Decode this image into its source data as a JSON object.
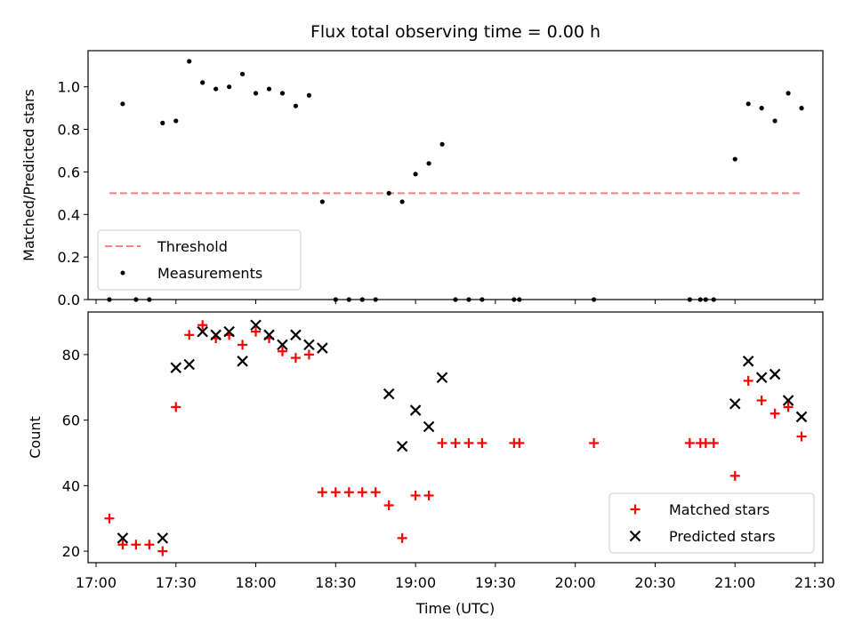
{
  "chart_data": [
    {
      "type": "scatter",
      "title": "Flux total observing time = 0.00 h",
      "ylabel": "Matched/Predicted stars",
      "xlabel": "",
      "ylim": [
        0,
        1.17
      ],
      "xlim": [
        "16:57",
        "21:33"
      ],
      "yticks": [
        "0.0",
        "0.2",
        "0.4",
        "0.6",
        "0.8",
        "1.0"
      ],
      "legend": {
        "placement": "lower-left",
        "entries": [
          "Threshold",
          "Measurements"
        ]
      },
      "threshold": {
        "value": 0.5,
        "x_start": "17:05",
        "x_end": "21:25",
        "color": "#ff7f7f"
      },
      "series": [
        {
          "name": "Measurements",
          "color": "#000000",
          "marker": "dot",
          "points": [
            [
              "17:05",
              0.0
            ],
            [
              "17:10",
              0.92
            ],
            [
              "17:15",
              0.0
            ],
            [
              "17:20",
              0.0
            ],
            [
              "17:25",
              0.83
            ],
            [
              "17:30",
              0.84
            ],
            [
              "17:35",
              1.12
            ],
            [
              "17:40",
              1.02
            ],
            [
              "17:45",
              0.99
            ],
            [
              "17:50",
              1.0
            ],
            [
              "17:55",
              1.06
            ],
            [
              "18:00",
              0.97
            ],
            [
              "18:05",
              0.99
            ],
            [
              "18:10",
              0.97
            ],
            [
              "18:15",
              0.91
            ],
            [
              "18:20",
              0.96
            ],
            [
              "18:25",
              0.46
            ],
            [
              "18:30",
              0.0
            ],
            [
              "18:35",
              0.0
            ],
            [
              "18:40",
              0.0
            ],
            [
              "18:45",
              0.0
            ],
            [
              "18:50",
              0.5
            ],
            [
              "18:55",
              0.46
            ],
            [
              "19:00",
              0.59
            ],
            [
              "19:05",
              0.64
            ],
            [
              "19:10",
              0.73
            ],
            [
              "19:15",
              0.0
            ],
            [
              "19:20",
              0.0
            ],
            [
              "19:25",
              0.0
            ],
            [
              "19:37",
              0.0
            ],
            [
              "19:39",
              0.0
            ],
            [
              "20:07",
              0.0
            ],
            [
              "20:43",
              0.0
            ],
            [
              "20:47",
              0.0
            ],
            [
              "20:49",
              0.0
            ],
            [
              "20:52",
              0.0
            ],
            [
              "21:00",
              0.66
            ],
            [
              "21:05",
              0.92
            ],
            [
              "21:10",
              0.9
            ],
            [
              "21:15",
              0.84
            ],
            [
              "21:20",
              0.97
            ],
            [
              "21:25",
              0.9
            ]
          ]
        }
      ]
    },
    {
      "type": "scatter",
      "title": "",
      "ylabel": "Count",
      "xlabel": "Time (UTC)",
      "ylim": [
        16.5,
        93
      ],
      "xlim": [
        "16:57",
        "21:33"
      ],
      "yticks": [
        "20",
        "40",
        "60",
        "80"
      ],
      "xticks": [
        "17:00",
        "17:30",
        "18:00",
        "18:30",
        "19:00",
        "19:30",
        "20:00",
        "20:30",
        "21:00",
        "21:30"
      ],
      "legend": {
        "placement": "lower-right",
        "entries": [
          "Matched stars",
          "Predicted stars"
        ]
      },
      "series": [
        {
          "name": "Matched stars",
          "color": "#ff0000",
          "marker": "plus",
          "points": [
            [
              "17:05",
              30
            ],
            [
              "17:10",
              22
            ],
            [
              "17:15",
              22
            ],
            [
              "17:20",
              22
            ],
            [
              "17:25",
              20
            ],
            [
              "17:30",
              64
            ],
            [
              "17:35",
              86
            ],
            [
              "17:40",
              89
            ],
            [
              "17:45",
              85
            ],
            [
              "17:50",
              86
            ],
            [
              "17:55",
              83
            ],
            [
              "18:00",
              87
            ],
            [
              "18:05",
              85
            ],
            [
              "18:10",
              81
            ],
            [
              "18:15",
              79
            ],
            [
              "18:20",
              80
            ],
            [
              "18:25",
              38
            ],
            [
              "18:30",
              38
            ],
            [
              "18:35",
              38
            ],
            [
              "18:40",
              38
            ],
            [
              "18:45",
              38
            ],
            [
              "18:50",
              34
            ],
            [
              "18:55",
              24
            ],
            [
              "19:00",
              37
            ],
            [
              "19:05",
              37
            ],
            [
              "19:10",
              53
            ],
            [
              "19:15",
              53
            ],
            [
              "19:20",
              53
            ],
            [
              "19:25",
              53
            ],
            [
              "19:37",
              53
            ],
            [
              "19:39",
              53
            ],
            [
              "20:07",
              53
            ],
            [
              "20:43",
              53
            ],
            [
              "20:47",
              53
            ],
            [
              "20:49",
              53
            ],
            [
              "20:52",
              53
            ],
            [
              "21:00",
              43
            ],
            [
              "21:05",
              72
            ],
            [
              "21:10",
              66
            ],
            [
              "21:15",
              62
            ],
            [
              "21:20",
              64
            ],
            [
              "21:25",
              55
            ]
          ]
        },
        {
          "name": "Predicted stars",
          "color": "#000000",
          "marker": "x",
          "points": [
            [
              "17:10",
              24
            ],
            [
              "17:25",
              24
            ],
            [
              "17:30",
              76
            ],
            [
              "17:35",
              77
            ],
            [
              "17:40",
              87
            ],
            [
              "17:45",
              86
            ],
            [
              "17:50",
              87
            ],
            [
              "17:55",
              78
            ],
            [
              "18:00",
              89
            ],
            [
              "18:05",
              86
            ],
            [
              "18:10",
              83
            ],
            [
              "18:15",
              86
            ],
            [
              "18:20",
              83
            ],
            [
              "18:25",
              82
            ],
            [
              "18:50",
              68
            ],
            [
              "18:55",
              52
            ],
            [
              "19:00",
              63
            ],
            [
              "19:05",
              58
            ],
            [
              "19:10",
              73
            ],
            [
              "21:00",
              65
            ],
            [
              "21:05",
              78
            ],
            [
              "21:10",
              73
            ],
            [
              "21:15",
              74
            ],
            [
              "21:20",
              66
            ],
            [
              "21:25",
              61
            ]
          ]
        }
      ]
    }
  ]
}
